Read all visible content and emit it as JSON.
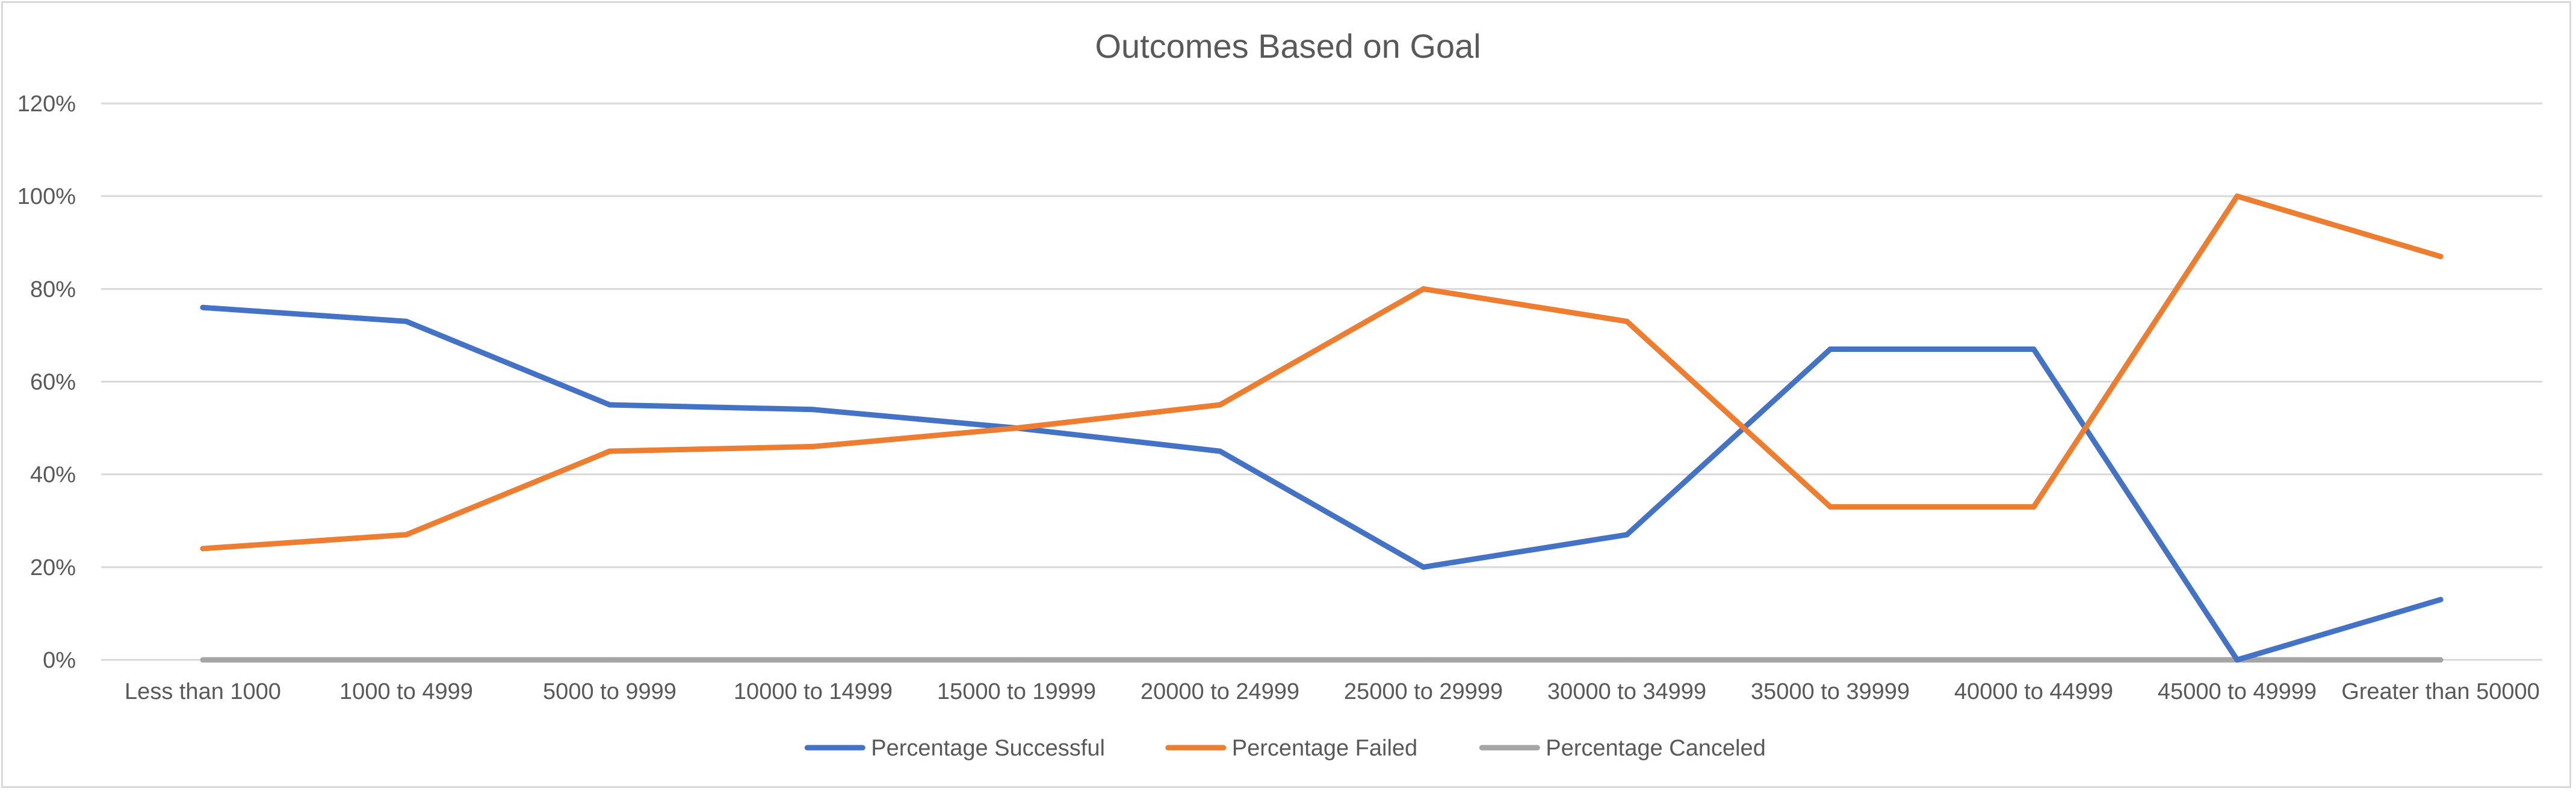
{
  "chart_data": {
    "type": "line",
    "title": "Outcomes Based on Goal",
    "xlabel": "",
    "ylabel": "",
    "categories": [
      "Less than 1000",
      "1000 to 4999",
      "5000 to 9999",
      "10000 to 14999",
      "15000 to 19999",
      "20000 to 24999",
      "25000 to 29999",
      "30000 to 34999",
      "35000 to 39999",
      "40000 to 44999",
      "45000 to 49999",
      "Greater than 50000"
    ],
    "ylim": [
      0,
      120
    ],
    "yticks": [
      "0%",
      "20%",
      "40%",
      "60%",
      "80%",
      "100%",
      "120%"
    ],
    "grid": true,
    "legend_position": "bottom",
    "series": [
      {
        "name": "Percentage Successful",
        "color": "#4472c4",
        "values": [
          76,
          73,
          55,
          54,
          50,
          45,
          20,
          27,
          67,
          67,
          0,
          13
        ]
      },
      {
        "name": "Percentage Failed",
        "color": "#ed7d31",
        "values": [
          24,
          27,
          45,
          46,
          50,
          55,
          80,
          73,
          33,
          33,
          100,
          87
        ]
      },
      {
        "name": "Percentage Canceled",
        "color": "#a5a5a5",
        "values": [
          0,
          0,
          0,
          0,
          0,
          0,
          0,
          0,
          0,
          0,
          0,
          0
        ]
      }
    ]
  }
}
